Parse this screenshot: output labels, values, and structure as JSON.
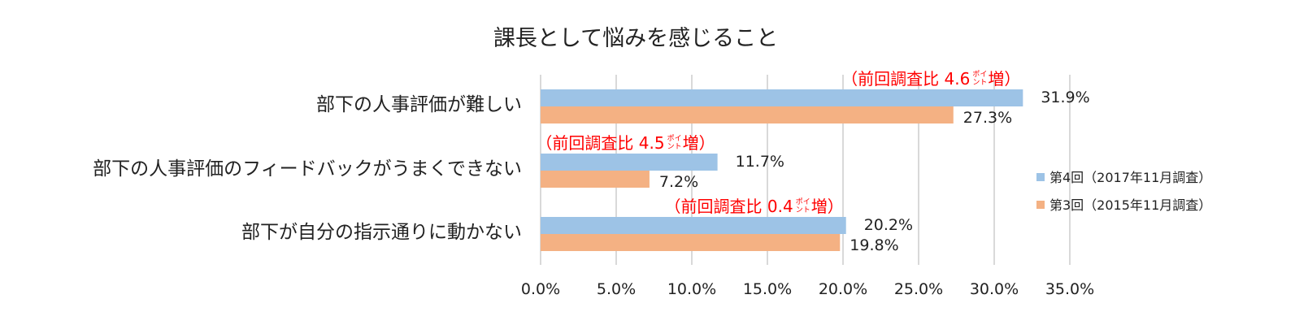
{
  "chart_data": {
    "type": "bar",
    "orientation": "horizontal",
    "title": "課長として悩みを感じること",
    "categories": [
      "部下の人事評価が難しい",
      "部下の人事評価のフィードバックがうまくできない",
      "部下が自分の指示通りに動かない"
    ],
    "series": [
      {
        "name": "第4回（2017年11月調査）",
        "color": "#9DC3E6",
        "values": [
          31.9,
          11.7,
          20.2
        ],
        "value_labels": [
          "31.9%",
          "11.7%",
          "20.2%"
        ]
      },
      {
        "name": "第3回（2015年11月調査）",
        "color": "#F4B183",
        "values": [
          27.3,
          7.2,
          19.8
        ],
        "value_labels": [
          "27.3%",
          "7.2%",
          "19.8%"
        ]
      }
    ],
    "annotations": [
      {
        "prefix": "（前回調査比 4.6",
        "small_upper": "ポイ",
        "small_lower": "ント",
        "suffix": "増）"
      },
      {
        "prefix": "（前回調査比 4.5",
        "small_upper": "ポイ",
        "small_lower": "ント",
        "suffix": "増）"
      },
      {
        "prefix": "（前回調査比 0.4",
        "small_upper": "ポイ",
        "small_lower": "ント",
        "suffix": "増）"
      }
    ],
    "annotation_color": "#FF0000",
    "xlim": [
      0,
      35
    ],
    "xticks": [
      0,
      5,
      10,
      15,
      20,
      25,
      30,
      35
    ],
    "xtick_labels": [
      "0.0%",
      "5.0%",
      "10.0%",
      "15.0%",
      "20.0%",
      "25.0%",
      "30.0%",
      "35.0%"
    ],
    "grid": true,
    "grid_color": "#D9D9D9",
    "legend_position": "right"
  }
}
